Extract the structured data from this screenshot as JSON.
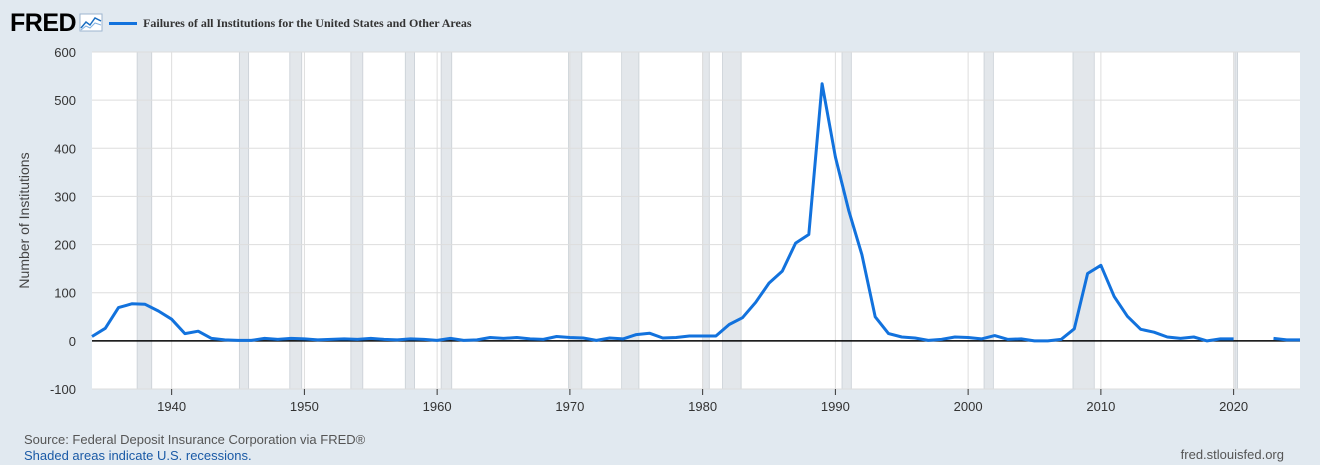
{
  "brand": {
    "logo_text": "FRED",
    "logo_icon": "fred-chart-icon"
  },
  "colors": {
    "line": "#1272dd",
    "recession": "#e3e7eb",
    "grid": "#dddddd",
    "zero_line": "#000000"
  },
  "chart_data": {
    "type": "line",
    "title": "Failures of all Institutions for the United States and Other Areas",
    "xlabel": "",
    "ylabel": "Number of Institutions",
    "xlim": [
      1934,
      2025
    ],
    "ylim": [
      -100,
      600
    ],
    "y_ticks": [
      "-100",
      "0",
      "100",
      "200",
      "300",
      "400",
      "500",
      "600"
    ],
    "x_ticks": [
      "1940",
      "1950",
      "1960",
      "1970",
      "1980",
      "1990",
      "2000",
      "2010",
      "2020"
    ],
    "grid": true,
    "recessions": [
      [
        1937.4,
        1938.5
      ],
      [
        1945.1,
        1945.8
      ],
      [
        1948.9,
        1949.8
      ],
      [
        1953.5,
        1954.4
      ],
      [
        1957.6,
        1958.3
      ],
      [
        1960.3,
        1961.1
      ],
      [
        1969.9,
        1970.9
      ],
      [
        1973.9,
        1975.2
      ],
      [
        1980.0,
        1980.5
      ],
      [
        1981.5,
        1982.9
      ],
      [
        1990.5,
        1991.2
      ],
      [
        2001.2,
        2001.9
      ],
      [
        2007.9,
        2009.5
      ],
      [
        2020.1,
        2020.3
      ]
    ],
    "series": [
      {
        "values": [
          [
            1934,
            9
          ],
          [
            1935,
            26
          ],
          [
            1936,
            69
          ],
          [
            1937,
            77
          ],
          [
            1938,
            76
          ],
          [
            1939,
            62
          ],
          [
            1940,
            45
          ],
          [
            1941,
            15
          ],
          [
            1942,
            20
          ],
          [
            1943,
            5
          ],
          [
            1944,
            2
          ],
          [
            1945,
            1
          ],
          [
            1946,
            1
          ],
          [
            1947,
            5
          ],
          [
            1948,
            3
          ],
          [
            1949,
            5
          ],
          [
            1950,
            4
          ],
          [
            1951,
            2
          ],
          [
            1952,
            3
          ],
          [
            1953,
            4
          ],
          [
            1954,
            3
          ],
          [
            1955,
            5
          ],
          [
            1956,
            3
          ],
          [
            1957,
            2
          ],
          [
            1958,
            4
          ],
          [
            1959,
            3
          ],
          [
            1960,
            1
          ],
          [
            1961,
            5
          ],
          [
            1962,
            1
          ],
          [
            1963,
            2
          ],
          [
            1964,
            7
          ],
          [
            1965,
            5
          ],
          [
            1966,
            7
          ],
          [
            1967,
            4
          ],
          [
            1968,
            3
          ],
          [
            1969,
            9
          ],
          [
            1970,
            7
          ],
          [
            1971,
            6
          ],
          [
            1972,
            1
          ],
          [
            1973,
            6
          ],
          [
            1974,
            4
          ],
          [
            1975,
            13
          ],
          [
            1976,
            16
          ],
          [
            1977,
            6
          ],
          [
            1978,
            7
          ],
          [
            1979,
            10
          ],
          [
            1980,
            10
          ],
          [
            1981,
            10
          ],
          [
            1982,
            34
          ],
          [
            1983,
            48
          ],
          [
            1984,
            80
          ],
          [
            1985,
            120
          ],
          [
            1986,
            145
          ],
          [
            1987,
            203
          ],
          [
            1988,
            221
          ],
          [
            1989,
            534
          ],
          [
            1990,
            382
          ],
          [
            1991,
            271
          ],
          [
            1992,
            179
          ],
          [
            1993,
            50
          ],
          [
            1994,
            15
          ],
          [
            1995,
            8
          ],
          [
            1996,
            6
          ],
          [
            1997,
            1
          ],
          [
            1998,
            3
          ],
          [
            1999,
            8
          ],
          [
            2000,
            7
          ],
          [
            2001,
            4
          ],
          [
            2002,
            11
          ],
          [
            2003,
            3
          ],
          [
            2004,
            4
          ],
          [
            2005,
            0
          ],
          [
            2006,
            0
          ],
          [
            2007,
            3
          ],
          [
            2008,
            25
          ],
          [
            2009,
            140
          ],
          [
            2010,
            157
          ],
          [
            2011,
            92
          ],
          [
            2012,
            51
          ],
          [
            2013,
            24
          ],
          [
            2014,
            18
          ],
          [
            2015,
            8
          ],
          [
            2016,
            5
          ],
          [
            2017,
            8
          ],
          [
            2018,
            0
          ],
          [
            2019,
            4
          ],
          [
            2020,
            4
          ],
          [
            null,
            null
          ],
          [
            2023,
            5
          ],
          [
            2024,
            2
          ],
          [
            2025,
            2
          ]
        ]
      }
    ]
  },
  "footer": {
    "source": "Source: Federal Deposit Insurance Corporation via FRED®",
    "recession_note": "Shaded areas indicate U.S. recessions.",
    "site": "fred.stlouisfed.org"
  }
}
